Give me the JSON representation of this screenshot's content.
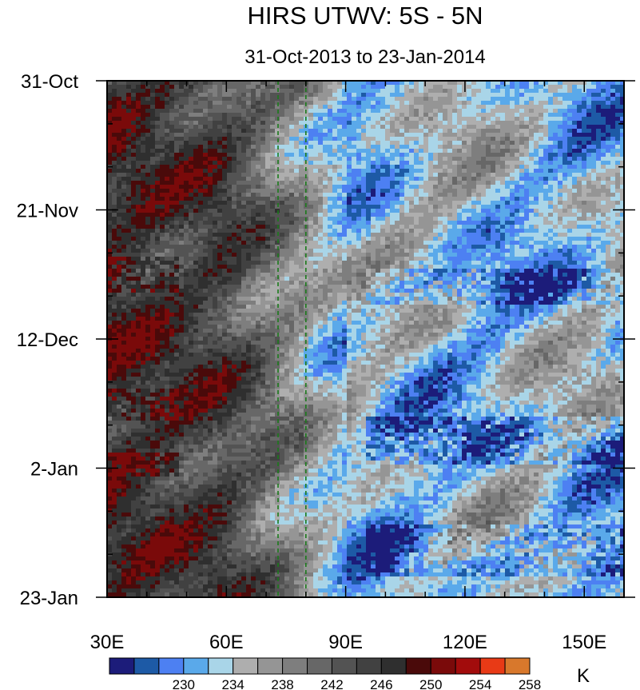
{
  "chart_data": {
    "type": "heatmap",
    "title": "HIRS UTWV: 5S - 5N",
    "subtitle": "31-Oct-2013 to 23-Jan-2014",
    "x_axis": {
      "range": [
        30,
        160
      ],
      "ticks": [
        {
          "value": 30,
          "label": "30E"
        },
        {
          "value": 60,
          "label": "60E"
        },
        {
          "value": 90,
          "label": "90E"
        },
        {
          "value": 120,
          "label": "120E"
        },
        {
          "value": 150,
          "label": "150E"
        }
      ],
      "minor_step": 10
    },
    "y_axis": {
      "range_days": [
        0,
        84
      ],
      "ticks": [
        {
          "day": 0,
          "label": "31-Oct"
        },
        {
          "day": 21,
          "label": "21-Nov"
        },
        {
          "day": 42,
          "label": "12-Dec"
        },
        {
          "day": 63,
          "label": "2-Jan"
        },
        {
          "day": 84,
          "label": "23-Jan"
        }
      ],
      "minor_step_days": 7
    },
    "reference_lines_lon": [
      73,
      80
    ],
    "reference_line_color": "#1a7a1a",
    "colorbar": {
      "unit": "K",
      "colors": [
        "#1c1c7a",
        "#1d5aa6",
        "#4d80f2",
        "#5aa9ea",
        "#a9d5e8",
        "#aeaeae",
        "#959595",
        "#7e7e7e",
        "#676767",
        "#535353",
        "#414141",
        "#2f2f2f",
        "#4a0a0a",
        "#7a0a0a",
        "#a20c0c",
        "#e83a16",
        "#d8782c"
      ],
      "labels": [
        {
          "after_index": 2,
          "text": "230"
        },
        {
          "after_index": 4,
          "text": "234"
        },
        {
          "after_index": 6,
          "text": "238"
        },
        {
          "after_index": 8,
          "text": "242"
        },
        {
          "after_index": 10,
          "text": "246"
        },
        {
          "after_index": 12,
          "text": "250"
        },
        {
          "after_index": 14,
          "text": "254"
        },
        {
          "after_index": 16,
          "text": "258"
        }
      ]
    },
    "field_description": {
      "west_of_75E": "warm/dry grey-to-dark values around 242-252 K, with small red pockets near 254 K",
      "east_of_80E": "cool/moist blue values around 230-240 K interleaved with grey patches"
    }
  }
}
